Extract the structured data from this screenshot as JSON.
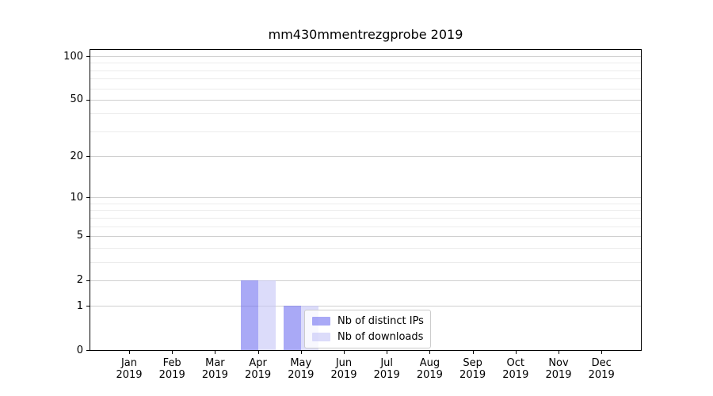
{
  "title": "mm430mmentrezgprobe 2019",
  "chart_data": {
    "type": "bar",
    "title": "mm430mmentrezgprobe 2019",
    "x_categories": [
      "Jan",
      "Feb",
      "Mar",
      "Apr",
      "May",
      "Jun",
      "Jul",
      "Aug",
      "Sep",
      "Oct",
      "Nov",
      "Dec"
    ],
    "x_year": "2019",
    "series": [
      {
        "name": "Nb of distinct IPs",
        "color": "#7070f0",
        "fill_alpha": 0.6,
        "values": [
          0,
          0,
          0,
          2,
          1,
          0,
          0,
          0,
          0,
          0,
          0,
          0
        ]
      },
      {
        "name": "Nb of downloads",
        "color": "#c5c5f7",
        "fill_alpha": 0.6,
        "values": [
          0,
          0,
          0,
          2,
          1,
          0,
          0,
          0,
          0,
          0,
          0,
          0
        ]
      }
    ],
    "yscale": "log1p",
    "ylim": [
      0,
      110
    ],
    "ytick_values": [
      0,
      1,
      2,
      5,
      10,
      20,
      50,
      100
    ],
    "ytick_labels": [
      "0",
      "1",
      "2",
      "5",
      "10",
      "20",
      "50",
      "100"
    ],
    "y_minor_gridlines": [
      3,
      4,
      6,
      7,
      8,
      9,
      30,
      40,
      60,
      70,
      80,
      90
    ],
    "grid": "horizontal major and minor",
    "legend_position": "inside lower-center",
    "legend_items": [
      "Nb of distinct IPs",
      "Nb of downloads"
    ]
  },
  "colors": {
    "bar_distinct_ips": "#aaaaf7",
    "bar_downloads": "#dcdcfa",
    "bar_distinct_ips_rgba": "rgba(112,112,240,0.6)",
    "bar_downloads_rgba": "rgba(197,197,247,0.6)",
    "grid_major": "#cfcfcf",
    "grid_minor": "#ececec",
    "axis": "#000000",
    "background": "#ffffff",
    "legend_border": "#cccccc"
  }
}
